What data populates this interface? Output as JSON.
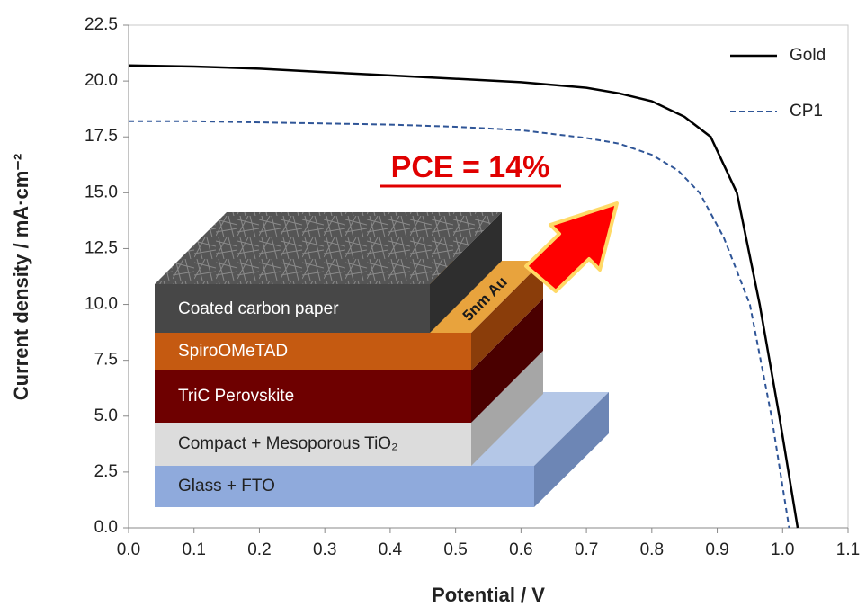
{
  "chart_data": {
    "type": "line",
    "x_label": "Potential / V",
    "y_label": "Current density / mA·cm⁻²",
    "annotation": "PCE = 14%",
    "inset_labels": [
      "Coated carbon paper",
      "5nm Au",
      "SpiroOMeTAD",
      "TriC Perovskite",
      "Compact + Mesoporous TiO₂",
      "Glass + FTO"
    ],
    "xlim": [
      0,
      1.1
    ],
    "ylim": [
      0,
      22.5
    ],
    "xticks": [
      {
        "value": 0,
        "label": "0.0"
      },
      0.1,
      0.2,
      0.3,
      0.4,
      0.5,
      0.6,
      0.7,
      0.8,
      0.9,
      {
        "value": 1,
        "label": "1.0"
      },
      1.1
    ],
    "yticks": [
      {
        "value": 0,
        "label": "0.0"
      },
      2.5,
      {
        "value": 5,
        "label": "5.0"
      },
      7.5,
      {
        "value": 10,
        "label": "10.0"
      },
      12.5,
      {
        "value": 15,
        "label": "15.0"
      },
      17.5,
      {
        "value": 20,
        "label": "20.0"
      },
      22.5
    ],
    "legend": "upper right",
    "series": [
      {
        "name": "Gold",
        "color": "#000000",
        "dash": "solid",
        "x": [
          0,
          0.1,
          0.2,
          0.3,
          0.4,
          0.5,
          0.6,
          0.7,
          0.75,
          0.8,
          0.85,
          0.89,
          0.93,
          0.965,
          0.995,
          1.023
        ],
        "values": [
          20.7,
          20.65,
          20.55,
          20.4,
          20.25,
          20.1,
          19.95,
          19.7,
          19.45,
          19.1,
          18.4,
          17.5,
          15.0,
          10.0,
          5.0,
          0.0
        ]
      },
      {
        "name": "CP1",
        "color": "#2f5597",
        "dash": "dashed",
        "x": [
          0,
          0.1,
          0.2,
          0.3,
          0.4,
          0.5,
          0.6,
          0.7,
          0.75,
          0.8,
          0.84,
          0.873,
          0.91,
          0.95,
          0.983,
          1.01
        ],
        "values": [
          18.2,
          18.2,
          18.15,
          18.1,
          18.05,
          17.95,
          17.8,
          17.45,
          17.2,
          16.7,
          16.0,
          15.0,
          13.0,
          10.0,
          5.0,
          0.0
        ]
      }
    ]
  }
}
